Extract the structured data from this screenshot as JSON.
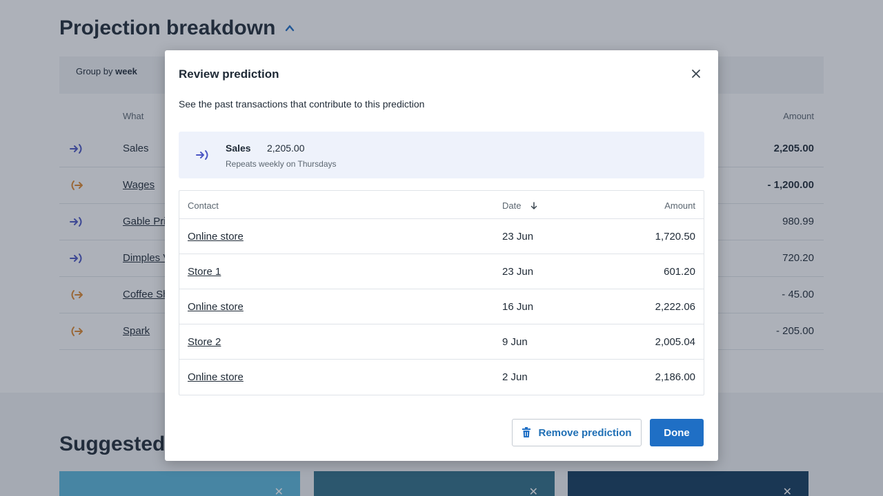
{
  "background": {
    "title": "Projection breakdown",
    "group_by_prefix": "Group by",
    "group_by_value": "week",
    "columns": {
      "what": "What",
      "amount": "Amount"
    },
    "rows": [
      {
        "name": "Sales",
        "amount": "2,205.00",
        "direction": "in",
        "icon": "incoming-arrow-icon"
      },
      {
        "name": "Wages",
        "amount": "- 1,200.00",
        "direction": "out",
        "icon": "outgoing-arrow-icon"
      },
      {
        "name": "Gable Pri",
        "amount": "980.99",
        "direction": "in",
        "icon": "incoming-arrow-icon"
      },
      {
        "name": "Dimples V",
        "amount": "720.20",
        "direction": "in",
        "icon": "incoming-arrow-icon"
      },
      {
        "name": "Coffee Sh",
        "amount": "- 45.00",
        "direction": "out",
        "icon": "outgoing-arrow-icon"
      },
      {
        "name": "Spark",
        "amount": "- 205.00",
        "direction": "out",
        "icon": "outgoing-arrow-icon"
      }
    ],
    "suggested_title": "Suggested",
    "card_colors": [
      "#5bb8dc",
      "#2f6f86",
      "#133a5c"
    ]
  },
  "modal": {
    "title": "Review prediction",
    "subtitle": "See the past transactions that contribute to this prediction",
    "summary": {
      "name": "Sales",
      "amount": "2,205.00",
      "repeat": "Repeats weekly on Thursdays",
      "icon": "incoming-arrow-icon"
    },
    "table": {
      "headers": {
        "contact": "Contact",
        "date": "Date",
        "amount": "Amount"
      },
      "sort_icon": "sort-down-arrow-icon",
      "rows": [
        {
          "contact": "Online store",
          "date": "23 Jun",
          "amount": "1,720.50"
        },
        {
          "contact": "Store 1",
          "date": "23 Jun",
          "amount": "601.20"
        },
        {
          "contact": "Online store",
          "date": "16 Jun",
          "amount": "2,222.06"
        },
        {
          "contact": "Store 2",
          "date": "9 Jun",
          "amount": "2,005.04"
        },
        {
          "contact": "Online store",
          "date": "2 Jun",
          "amount": "2,186.00"
        }
      ]
    },
    "remove_label": "Remove prediction",
    "done_label": "Done"
  },
  "colors": {
    "incoming": "#4b56c4",
    "outgoing": "#e08a2e",
    "accent": "#1f6fc5"
  }
}
